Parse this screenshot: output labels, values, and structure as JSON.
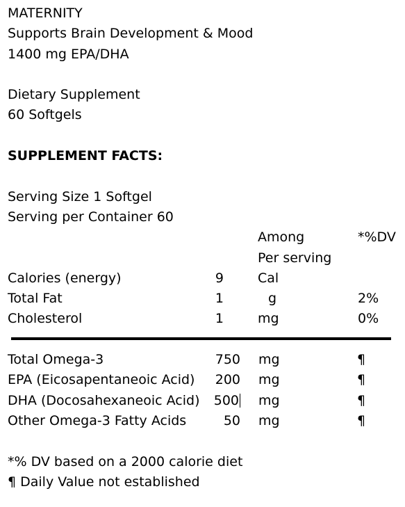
{
  "header": {
    "line1": "MATERNITY",
    "line2": "Supports Brain Development & Mood",
    "line3": "1400 mg EPA/DHA",
    "line4": "Dietary Supplement",
    "line5": "60 Softgels"
  },
  "facts_title": "SUPPLEMENT FACTS:",
  "serving": {
    "size": "Serving Size 1 Softgel",
    "per_container": "Serving per Container 60"
  },
  "column_headers": {
    "among": "Among",
    "per_serving": "Per serving",
    "dv": "*%DV"
  },
  "rows_top": [
    {
      "name": "Calories (energy)",
      "amount": "9",
      "unit": "Cal",
      "dv": ""
    },
    {
      "name": "Total Fat",
      "amount": "1",
      "unit": "g",
      "dv": "2%"
    },
    {
      "name": "Cholesterol",
      "amount": "1",
      "unit": "mg",
      "dv": "0%"
    }
  ],
  "rows_bottom": [
    {
      "name": "Total Omega-3",
      "amount": "750",
      "unit": "mg",
      "dv": "¶"
    },
    {
      "name": "EPA (Eicosapentaneoic Acid)",
      "amount": "200",
      "unit": "mg",
      "dv": "¶"
    },
    {
      "name": "DHA (Docosahexaneoic Acid)",
      "amount": "500",
      "unit": "mg",
      "dv": "¶"
    },
    {
      "name": "Other Omega-3 Fatty Acids",
      "amount": "50",
      "unit": "mg",
      "dv": "¶"
    }
  ],
  "footnotes": {
    "dv_note": "*% DV based on a 2000 calorie diet",
    "pilcrow_note": "¶ Daily Value not established"
  }
}
